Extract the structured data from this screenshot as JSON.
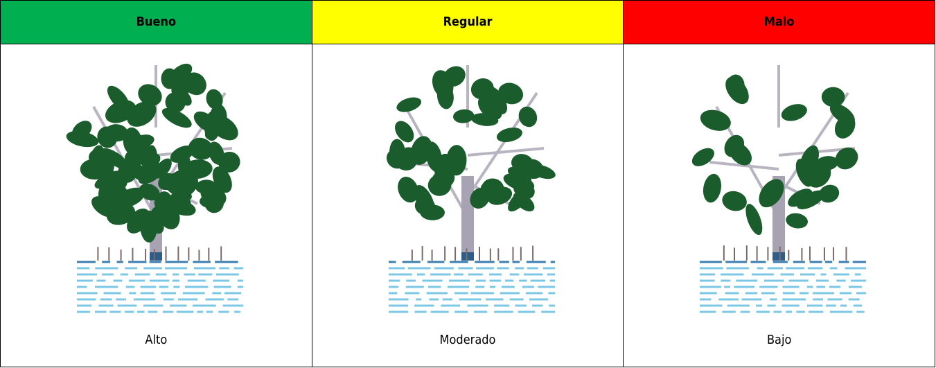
{
  "table": {
    "header": [
      "Bueno",
      "Regular",
      "Malo"
    ],
    "rows": [
      [
        "Alto",
        "Moderado",
        "Bajo"
      ]
    ]
  }
}
